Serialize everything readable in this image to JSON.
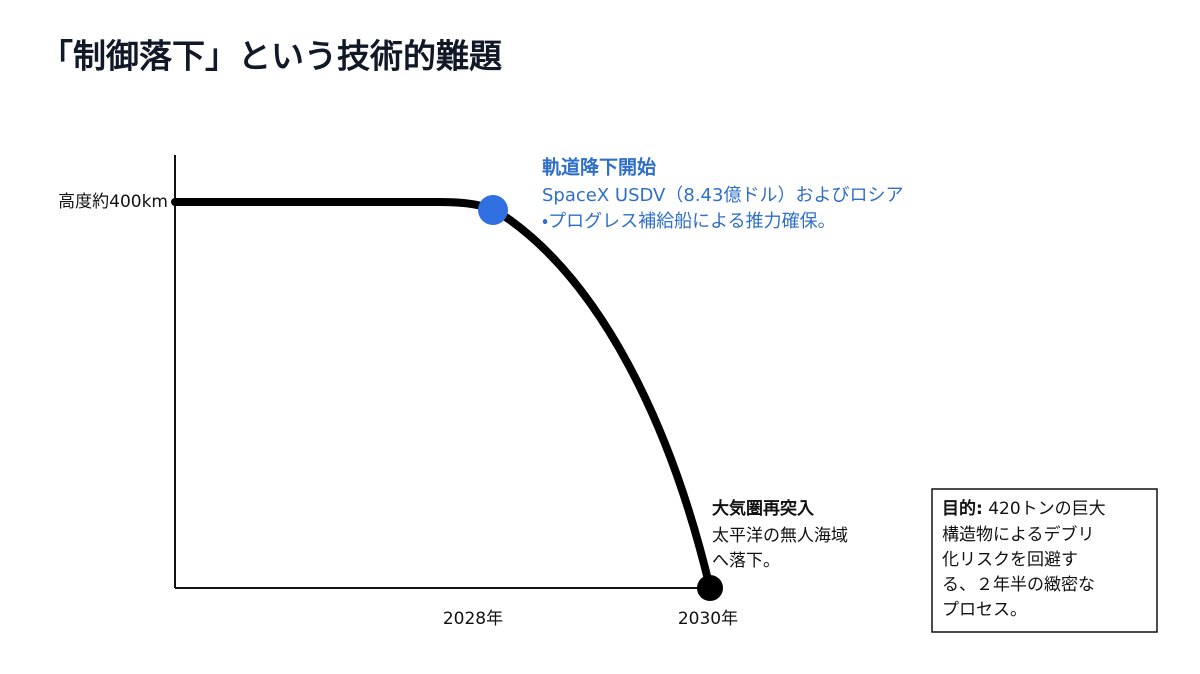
{
  "title": "「制御落下」という技術的難題",
  "y_label": "高度約400km",
  "x_labels": [
    "2028年",
    "2030年"
  ],
  "point_start": {
    "title": "軌道降下開始",
    "lines": [
      "SpaceX USDV（8.43億ドル）およびロシア",
      "・プログレス補給船による推力確保。"
    ]
  },
  "point_end": {
    "title": "大気圏再突入",
    "lines": [
      "太平洋の無人海域",
      "へ落下。"
    ]
  },
  "note": {
    "label": "目的:",
    "lines": [
      " 420トンの巨大",
      "構造物によるデブリ",
      "化リスクを回避す",
      "る、２年半の緻密な",
      "プロセス。"
    ]
  }
}
